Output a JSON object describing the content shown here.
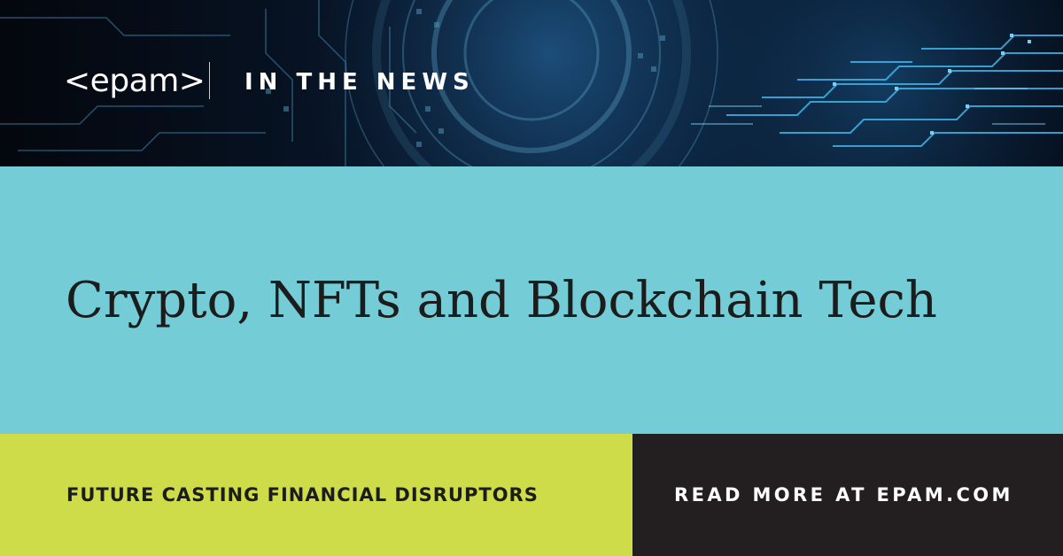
{
  "header": {
    "logo": "<epam>",
    "kicker": "IN THE NEWS"
  },
  "main": {
    "headline": "Crypto, NFTs and Blockchain Tech"
  },
  "footer": {
    "left_text": "FUTURE CASTING FINANCIAL DISRUPTORS",
    "right_text": "READ MORE AT EPAM.COM"
  },
  "colors": {
    "header_bg": "#071a2e",
    "title_band": "#74ccd7",
    "footer_left": "#cddc48",
    "footer_right": "#231f20",
    "circuit_glow": "#3fa9e0"
  }
}
